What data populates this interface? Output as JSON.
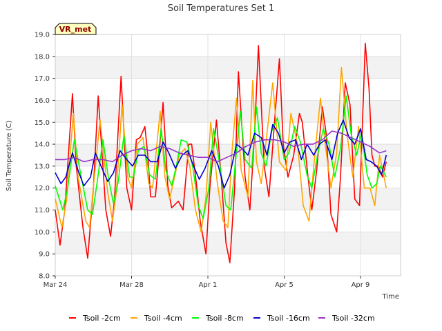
{
  "chart_data": {
    "type": "line",
    "title": "Soil Temperatures Set 1",
    "xlabel": "Time",
    "ylabel": "Soil Temperature (C)",
    "badge": "VR_met",
    "x_tick_labels": [
      "Mar 24",
      "Mar 28",
      "Apr 1",
      "Apr 5",
      "Apr 9"
    ],
    "x_tick_days": [
      0,
      4,
      8,
      12,
      16
    ],
    "xlim_days": [
      0,
      18.1
    ],
    "ylim": [
      8.0,
      19.0
    ],
    "y_ticks": [
      8.0,
      9.0,
      10.0,
      11.0,
      12.0,
      13.0,
      14.0,
      15.0,
      16.0,
      17.0,
      18.0,
      19.0
    ],
    "grid": true,
    "legend_position": "bottom",
    "time_axis_note": "x values are day offsets from Mar 24",
    "colors": {
      "plot_bg": "#ffffff",
      "band_bg": "#f2f2f2",
      "border": "#cccccc",
      "badge_bg": "#ffffc0"
    },
    "series": [
      {
        "name": "Tsoil -2cm",
        "color": "#ff0000",
        "x": [
          0.0,
          0.25,
          0.5,
          0.9,
          1.1,
          1.45,
          1.7,
          2.0,
          2.25,
          2.65,
          2.9,
          3.1,
          3.45,
          3.75,
          4.0,
          4.25,
          4.45,
          4.7,
          4.85,
          5.0,
          5.25,
          5.45,
          5.65,
          5.9,
          6.1,
          6.45,
          6.7,
          7.0,
          7.15,
          7.4,
          7.6,
          7.9,
          8.1,
          8.45,
          8.7,
          8.95,
          9.15,
          9.4,
          9.6,
          9.95,
          10.2,
          10.45,
          10.65,
          10.95,
          11.2,
          11.45,
          11.75,
          11.95,
          12.2,
          12.5,
          12.8,
          12.95,
          13.25,
          13.45,
          13.7,
          14.0,
          14.2,
          14.45,
          14.75,
          14.95,
          15.2,
          15.45,
          15.7,
          15.95,
          16.25,
          16.45,
          16.6,
          16.75,
          16.95,
          17.15,
          17.35
        ],
        "y": [
          11.0,
          9.4,
          11.0,
          16.3,
          13.0,
          10.2,
          8.8,
          12.0,
          16.2,
          11.0,
          9.8,
          11.4,
          17.1,
          12.0,
          11.0,
          14.2,
          14.3,
          14.8,
          13.5,
          11.6,
          11.6,
          13.6,
          15.9,
          12.1,
          11.1,
          11.4,
          11.0,
          14.0,
          14.0,
          12.2,
          10.5,
          9.0,
          12.0,
          15.1,
          12.5,
          9.5,
          8.6,
          12.0,
          17.3,
          12.5,
          11.0,
          14.5,
          18.5,
          13.0,
          11.6,
          14.5,
          17.9,
          14.0,
          12.5,
          13.5,
          15.4,
          15.0,
          12.5,
          11.0,
          12.8,
          15.7,
          14.5,
          10.8,
          10.0,
          12.5,
          16.8,
          15.8,
          11.5,
          11.2,
          18.6,
          16.5,
          13.5,
          13.0,
          13.0,
          12.5,
          13.2
        ]
      },
      {
        "name": "Tsoil -4cm",
        "color": "#ffa500",
        "x": [
          0.0,
          0.35,
          0.6,
          0.95,
          1.2,
          1.6,
          1.8,
          2.05,
          2.35,
          2.75,
          3.0,
          3.2,
          3.5,
          3.8,
          4.0,
          4.3,
          4.6,
          4.9,
          5.1,
          5.5,
          5.75,
          6.0,
          6.25,
          6.5,
          6.8,
          7.05,
          7.35,
          7.65,
          7.9,
          8.15,
          8.5,
          8.8,
          9.05,
          9.25,
          9.5,
          9.75,
          10.1,
          10.35,
          10.55,
          10.8,
          11.1,
          11.4,
          11.75,
          12.1,
          12.35,
          12.7,
          13.0,
          13.3,
          13.55,
          13.9,
          14.15,
          14.45,
          14.75,
          15.0,
          15.3,
          15.6,
          15.9,
          16.2,
          16.5,
          16.75,
          17.0,
          17.35
        ],
        "y": [
          11.5,
          10.2,
          11.5,
          15.4,
          12.5,
          10.5,
          10.2,
          12.5,
          15.1,
          11.8,
          10.5,
          11.8,
          15.8,
          12.5,
          12.0,
          14.0,
          14.3,
          12.2,
          12.0,
          15.5,
          12.5,
          11.5,
          12.5,
          13.5,
          13.8,
          13.0,
          11.0,
          10.0,
          11.6,
          15.0,
          12.2,
          10.5,
          10.2,
          13.5,
          16.1,
          12.8,
          11.6,
          16.9,
          13.2,
          12.2,
          14.5,
          16.8,
          13.2,
          12.8,
          15.4,
          14.0,
          11.2,
          10.5,
          13.0,
          16.1,
          14.0,
          12.0,
          13.6,
          17.5,
          14.4,
          12.5,
          14.8,
          12.0,
          12.0,
          11.2,
          13.5,
          12.0
        ]
      },
      {
        "name": "Tsoil -8cm",
        "color": "#00ff00",
        "x": [
          0.0,
          0.4,
          0.65,
          1.0,
          1.3,
          1.7,
          1.95,
          2.2,
          2.5,
          2.8,
          3.05,
          3.3,
          3.6,
          3.9,
          4.1,
          4.35,
          4.65,
          4.95,
          5.25,
          5.55,
          5.8,
          6.1,
          6.35,
          6.6,
          6.9,
          7.2,
          7.5,
          7.75,
          8.05,
          8.3,
          8.6,
          8.95,
          9.2,
          9.45,
          9.7,
          9.95,
          10.3,
          10.55,
          10.8,
          11.05,
          11.35,
          11.65,
          12.0,
          12.25,
          12.55,
          12.85,
          13.2,
          13.45,
          13.75,
          14.05,
          14.35,
          14.65,
          14.95,
          15.25,
          15.5,
          15.8,
          16.05,
          16.35,
          16.6,
          16.85,
          17.05,
          17.35
        ],
        "y": [
          12.1,
          11.0,
          12.0,
          14.2,
          12.8,
          11.0,
          10.8,
          12.3,
          14.2,
          12.4,
          11.3,
          12.3,
          14.4,
          12.5,
          12.5,
          13.7,
          13.9,
          12.6,
          12.4,
          14.7,
          12.8,
          12.1,
          13.0,
          14.2,
          14.1,
          13.0,
          11.2,
          10.6,
          12.0,
          14.7,
          13.2,
          11.2,
          11.0,
          13.2,
          15.5,
          13.3,
          12.9,
          15.7,
          13.6,
          13.0,
          14.6,
          15.2,
          13.3,
          13.6,
          14.8,
          14.1,
          12.6,
          12.0,
          13.5,
          14.7,
          14.0,
          12.5,
          13.8,
          16.2,
          14.5,
          13.5,
          14.5,
          12.6,
          12.0,
          12.2,
          13.0,
          12.5
        ]
      },
      {
        "name": "Tsoil -16cm",
        "color": "#0000cd",
        "x": [
          0.0,
          0.3,
          0.55,
          0.9,
          1.2,
          1.5,
          1.85,
          2.1,
          2.45,
          2.75,
          3.05,
          3.4,
          3.75,
          4.05,
          4.35,
          4.7,
          5.0,
          5.35,
          5.65,
          5.95,
          6.3,
          6.65,
          6.95,
          7.25,
          7.55,
          7.85,
          8.2,
          8.55,
          8.85,
          9.15,
          9.5,
          9.8,
          10.1,
          10.45,
          10.8,
          11.1,
          11.4,
          11.7,
          12.0,
          12.3,
          12.6,
          12.9,
          13.2,
          13.55,
          13.85,
          14.15,
          14.5,
          14.8,
          15.1,
          15.4,
          15.7,
          16.0,
          16.3,
          16.55,
          16.85,
          17.1,
          17.35
        ],
        "y": [
          12.7,
          12.2,
          12.5,
          13.6,
          12.8,
          12.1,
          12.5,
          13.6,
          12.9,
          12.3,
          12.7,
          13.7,
          13.3,
          13.0,
          13.5,
          13.5,
          13.2,
          13.2,
          14.1,
          13.6,
          12.9,
          13.5,
          13.7,
          13.0,
          12.4,
          12.9,
          13.7,
          13.0,
          12.0,
          12.6,
          14.0,
          13.8,
          13.5,
          14.5,
          14.3,
          13.5,
          14.9,
          14.5,
          13.6,
          14.1,
          14.2,
          13.3,
          14.0,
          13.5,
          14.0,
          14.2,
          13.3,
          14.5,
          15.1,
          14.3,
          14.0,
          14.7,
          13.3,
          13.2,
          13.0,
          12.6,
          13.5
        ]
      },
      {
        "name": "Tsoil -32cm",
        "color": "#9932cc",
        "x": [
          0.0,
          0.5,
          1.0,
          1.5,
          2.0,
          2.5,
          3.0,
          3.5,
          4.0,
          4.5,
          5.0,
          5.5,
          6.0,
          6.5,
          7.0,
          7.5,
          8.0,
          8.5,
          9.0,
          9.5,
          10.0,
          10.5,
          11.0,
          11.5,
          12.0,
          12.5,
          13.0,
          13.5,
          14.0,
          14.5,
          15.0,
          15.5,
          16.0,
          16.5,
          17.0,
          17.35
        ],
        "y": [
          13.3,
          13.3,
          13.4,
          13.2,
          13.3,
          13.3,
          13.2,
          13.5,
          13.7,
          13.8,
          13.7,
          13.9,
          13.8,
          13.6,
          13.5,
          13.4,
          13.4,
          13.2,
          13.4,
          13.6,
          13.9,
          14.1,
          14.2,
          14.2,
          14.1,
          13.9,
          14.0,
          14.0,
          14.2,
          14.6,
          14.5,
          14.3,
          14.1,
          13.9,
          13.6,
          13.7
        ]
      }
    ]
  }
}
